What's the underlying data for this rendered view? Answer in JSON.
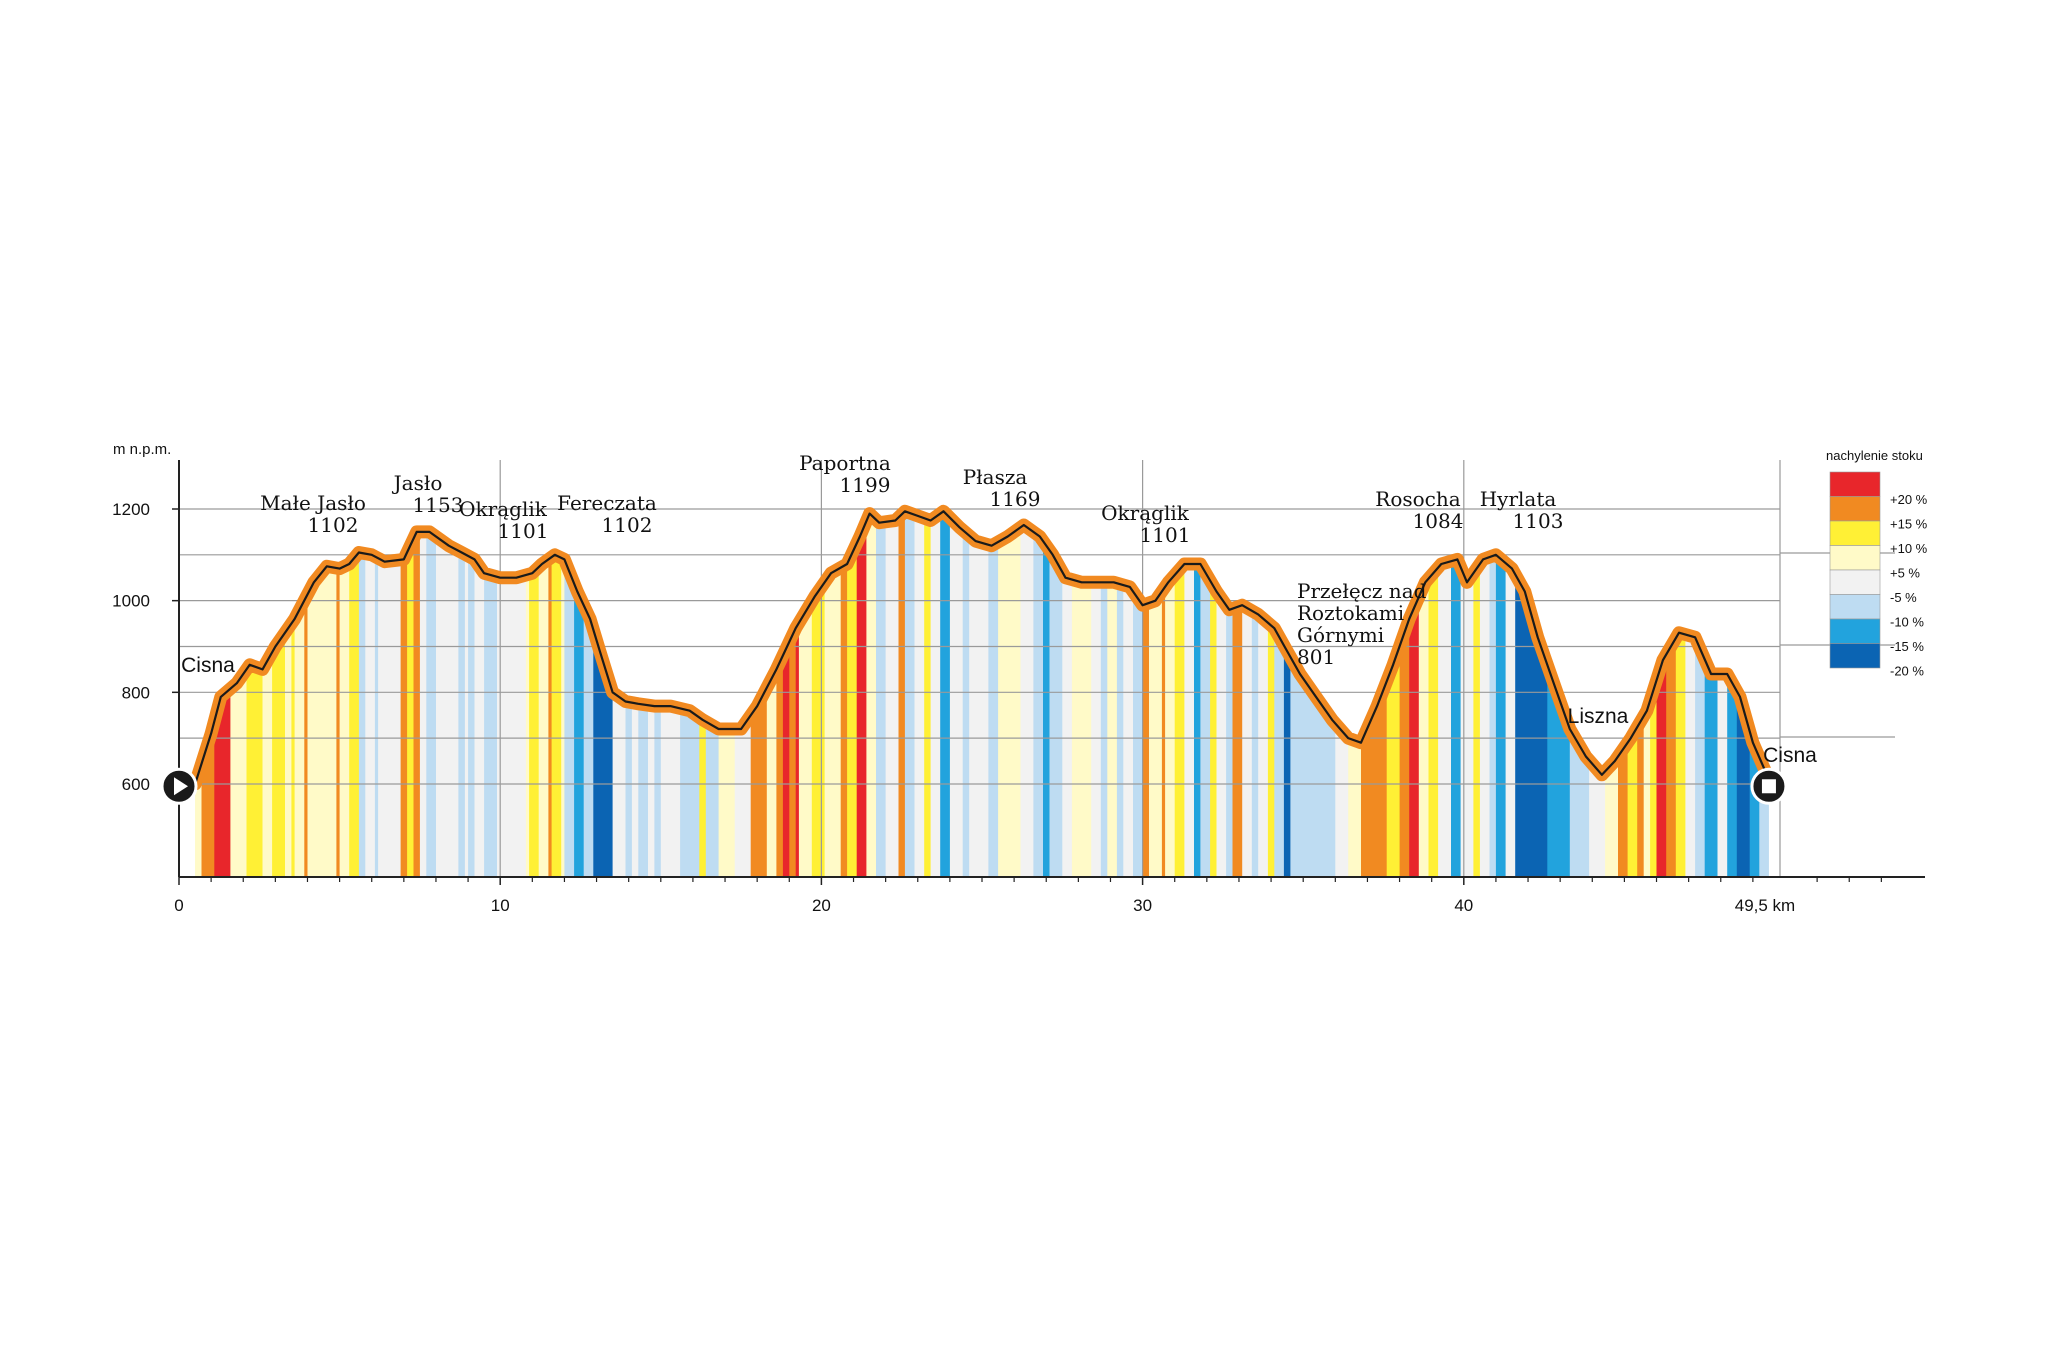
{
  "chart_data": {
    "type": "area",
    "ylabel": "m n.p.m.",
    "x_unit_label": "49,5 km",
    "xlim": [
      0,
      49.5
    ],
    "ylim": [
      450,
      1250
    ],
    "x_ticks": [
      {
        "value": 0,
        "label": "0"
      },
      {
        "value": 10,
        "label": "10"
      },
      {
        "value": 20,
        "label": "20"
      },
      {
        "value": 30,
        "label": "30"
      },
      {
        "value": 40,
        "label": "40"
      }
    ],
    "y_ticks": [
      {
        "value": 600,
        "label": "600"
      },
      {
        "value": 800,
        "label": "800"
      },
      {
        "value": 1000,
        "label": "1000"
      },
      {
        "value": 1200,
        "label": "1200"
      }
    ],
    "grid": true,
    "legend": {
      "title": "nachylenie stoku",
      "position": "top-right",
      "entries": [
        {
          "label": "+20 %",
          "color": "#e8262b"
        },
        {
          "label": "+15 %",
          "color": "#f18a21"
        },
        {
          "label": "+10 %",
          "color": "#fff035"
        },
        {
          "label": "+5 %",
          "color": "#fffac8"
        },
        {
          "label": "-5 %",
          "color": "#f2f2f2"
        },
        {
          "label": "-10 %",
          "color": "#bedcf2"
        },
        {
          "label": "-15 %",
          "color": "#22a3dd"
        },
        {
          "label": "-20 %",
          "color": "#0b64b3"
        }
      ]
    },
    "profile": [
      [
        0.5,
        600
      ],
      [
        1.0,
        710
      ],
      [
        1.3,
        790
      ],
      [
        1.8,
        820
      ],
      [
        2.2,
        860
      ],
      [
        2.6,
        850
      ],
      [
        3.0,
        900
      ],
      [
        3.6,
        960
      ],
      [
        4.2,
        1040
      ],
      [
        4.6,
        1075
      ],
      [
        5.0,
        1070
      ],
      [
        5.3,
        1080
      ],
      [
        5.6,
        1105
      ],
      [
        6.0,
        1100
      ],
      [
        6.4,
        1085
      ],
      [
        7.0,
        1090
      ],
      [
        7.4,
        1150
      ],
      [
        7.8,
        1150
      ],
      [
        8.4,
        1120
      ],
      [
        8.8,
        1105
      ],
      [
        9.2,
        1090
      ],
      [
        9.5,
        1060
      ],
      [
        10.0,
        1050
      ],
      [
        10.5,
        1050
      ],
      [
        11.0,
        1060
      ],
      [
        11.3,
        1080
      ],
      [
        11.7,
        1100
      ],
      [
        12.0,
        1090
      ],
      [
        12.4,
        1020
      ],
      [
        12.8,
        960
      ],
      [
        13.1,
        890
      ],
      [
        13.5,
        800
      ],
      [
        13.9,
        780
      ],
      [
        14.3,
        775
      ],
      [
        14.8,
        770
      ],
      [
        15.3,
        770
      ],
      [
        15.9,
        760
      ],
      [
        16.3,
        740
      ],
      [
        16.8,
        720
      ],
      [
        17.5,
        720
      ],
      [
        18.0,
        770
      ],
      [
        18.6,
        850
      ],
      [
        19.2,
        940
      ],
      [
        19.8,
        1010
      ],
      [
        20.3,
        1060
      ],
      [
        20.8,
        1080
      ],
      [
        21.2,
        1140
      ],
      [
        21.5,
        1190
      ],
      [
        21.8,
        1170
      ],
      [
        22.3,
        1175
      ],
      [
        22.6,
        1195
      ],
      [
        23.0,
        1185
      ],
      [
        23.4,
        1175
      ],
      [
        23.8,
        1195
      ],
      [
        24.3,
        1160
      ],
      [
        24.8,
        1130
      ],
      [
        25.3,
        1120
      ],
      [
        25.8,
        1140
      ],
      [
        26.3,
        1165
      ],
      [
        26.8,
        1140
      ],
      [
        27.2,
        1100
      ],
      [
        27.6,
        1050
      ],
      [
        28.1,
        1040
      ],
      [
        28.6,
        1040
      ],
      [
        29.1,
        1040
      ],
      [
        29.6,
        1030
      ],
      [
        30.0,
        990
      ],
      [
        30.4,
        1000
      ],
      [
        30.8,
        1040
      ],
      [
        31.3,
        1080
      ],
      [
        31.8,
        1080
      ],
      [
        32.3,
        1020
      ],
      [
        32.7,
        980
      ],
      [
        33.1,
        990
      ],
      [
        33.6,
        970
      ],
      [
        34.1,
        940
      ],
      [
        34.5,
        890
      ],
      [
        34.9,
        840
      ],
      [
        35.4,
        790
      ],
      [
        35.9,
        740
      ],
      [
        36.4,
        700
      ],
      [
        36.8,
        690
      ],
      [
        37.3,
        770
      ],
      [
        37.8,
        860
      ],
      [
        38.3,
        960
      ],
      [
        38.8,
        1040
      ],
      [
        39.3,
        1080
      ],
      [
        39.8,
        1090
      ],
      [
        40.1,
        1040
      ],
      [
        40.6,
        1090
      ],
      [
        41.0,
        1100
      ],
      [
        41.5,
        1070
      ],
      [
        41.9,
        1020
      ],
      [
        42.3,
        920
      ],
      [
        42.8,
        820
      ],
      [
        43.3,
        720
      ],
      [
        43.8,
        660
      ],
      [
        44.3,
        620
      ],
      [
        44.7,
        650
      ],
      [
        45.2,
        700
      ],
      [
        45.7,
        760
      ],
      [
        46.2,
        870
      ],
      [
        46.7,
        930
      ],
      [
        47.2,
        920
      ],
      [
        47.7,
        840
      ],
      [
        48.2,
        840
      ],
      [
        48.6,
        790
      ],
      [
        49.0,
        690
      ],
      [
        49.5,
        610
      ]
    ],
    "slope_stripes": [
      [
        0.0,
        0.7,
        "+5 %"
      ],
      [
        0.7,
        1.1,
        "+15 %"
      ],
      [
        1.1,
        1.6,
        "+20 %"
      ],
      [
        1.6,
        2.1,
        "+5 %"
      ],
      [
        2.1,
        2.6,
        "+10 %"
      ],
      [
        2.6,
        2.9,
        "+5 %"
      ],
      [
        2.9,
        3.3,
        "+10 %"
      ],
      [
        3.3,
        3.5,
        "+5 %"
      ],
      [
        3.5,
        3.6,
        "+10 %"
      ],
      [
        3.6,
        3.9,
        "+5 %"
      ],
      [
        3.9,
        4.0,
        "+15 %"
      ],
      [
        4.0,
        4.9,
        "+5 %"
      ],
      [
        4.9,
        5.0,
        "+15 %"
      ],
      [
        5.0,
        5.3,
        "+5 %"
      ],
      [
        5.3,
        5.6,
        "+10 %"
      ],
      [
        5.6,
        5.8,
        "-10 %"
      ],
      [
        5.8,
        6.1,
        "-5 %"
      ],
      [
        6.1,
        6.2,
        "-10 %"
      ],
      [
        6.2,
        6.9,
        "-5 %"
      ],
      [
        6.9,
        7.1,
        "+15 %"
      ],
      [
        7.1,
        7.3,
        "+10 %"
      ],
      [
        7.3,
        7.5,
        "+15 %"
      ],
      [
        7.5,
        7.7,
        "-5 %"
      ],
      [
        7.7,
        8.0,
        "-10 %"
      ],
      [
        8.0,
        8.7,
        "-5 %"
      ],
      [
        8.7,
        8.9,
        "-10 %"
      ],
      [
        8.9,
        9.0,
        "-5 %"
      ],
      [
        9.0,
        9.2,
        "-10 %"
      ],
      [
        9.2,
        9.5,
        "-5 %"
      ],
      [
        9.5,
        9.9,
        "-10 %"
      ],
      [
        9.9,
        10.8,
        "-5 %"
      ],
      [
        10.8,
        10.9,
        "+5 %"
      ],
      [
        10.9,
        11.2,
        "+10 %"
      ],
      [
        11.2,
        11.5,
        "+5 %"
      ],
      [
        11.5,
        11.6,
        "+15 %"
      ],
      [
        11.6,
        11.9,
        "+10 %"
      ],
      [
        11.9,
        12.0,
        "+5 %"
      ],
      [
        12.0,
        12.3,
        "-10 %"
      ],
      [
        12.3,
        12.6,
        "-15 %"
      ],
      [
        12.6,
        12.9,
        "-10 %"
      ],
      [
        12.9,
        13.5,
        "-20 %"
      ],
      [
        13.5,
        13.9,
        "-5 %"
      ],
      [
        13.9,
        14.1,
        "-10 %"
      ],
      [
        14.1,
        14.3,
        "-5 %"
      ],
      [
        14.3,
        14.6,
        "-10 %"
      ],
      [
        14.6,
        14.8,
        "-5 %"
      ],
      [
        14.8,
        15.0,
        "-10 %"
      ],
      [
        15.0,
        15.6,
        "-5 %"
      ],
      [
        15.6,
        16.2,
        "-10 %"
      ],
      [
        16.2,
        16.4,
        "+10 %"
      ],
      [
        16.4,
        16.8,
        "-10 %"
      ],
      [
        16.8,
        17.3,
        "+5 %"
      ],
      [
        17.3,
        17.8,
        "-5 %"
      ],
      [
        17.8,
        18.3,
        "+15 %"
      ],
      [
        18.3,
        18.6,
        "+5 %"
      ],
      [
        18.6,
        18.8,
        "+15 %"
      ],
      [
        18.8,
        19.0,
        "+20 %"
      ],
      [
        19.0,
        19.2,
        "+15 %"
      ],
      [
        19.2,
        19.3,
        "+20 %"
      ],
      [
        19.3,
        19.7,
        "+5 %"
      ],
      [
        19.7,
        20.1,
        "+10 %"
      ],
      [
        20.1,
        20.6,
        "+5 %"
      ],
      [
        20.6,
        20.8,
        "+15 %"
      ],
      [
        20.8,
        21.1,
        "+10 %"
      ],
      [
        21.1,
        21.4,
        "+20 %"
      ],
      [
        21.4,
        21.7,
        "+5 %"
      ],
      [
        21.7,
        22.0,
        "-10 %"
      ],
      [
        22.0,
        22.4,
        "-5 %"
      ],
      [
        22.4,
        22.6,
        "+15 %"
      ],
      [
        22.6,
        22.9,
        "-10 %"
      ],
      [
        22.9,
        23.2,
        "-5 %"
      ],
      [
        23.2,
        23.4,
        "+10 %"
      ],
      [
        23.4,
        23.7,
        "-5 %"
      ],
      [
        23.7,
        24.0,
        "-15 %"
      ],
      [
        24.0,
        24.4,
        "-5 %"
      ],
      [
        24.4,
        24.6,
        "-10 %"
      ],
      [
        24.6,
        25.2,
        "-5 %"
      ],
      [
        25.2,
        25.5,
        "-10 %"
      ],
      [
        25.5,
        26.2,
        "+5 %"
      ],
      [
        26.2,
        26.6,
        "-5 %"
      ],
      [
        26.6,
        26.9,
        "-10 %"
      ],
      [
        26.9,
        27.1,
        "-15 %"
      ],
      [
        27.1,
        27.5,
        "-10 %"
      ],
      [
        27.5,
        27.8,
        "-5 %"
      ],
      [
        27.8,
        28.4,
        "+5 %"
      ],
      [
        28.4,
        28.7,
        "-5 %"
      ],
      [
        28.7,
        28.9,
        "-10 %"
      ],
      [
        28.9,
        29.2,
        "+5 %"
      ],
      [
        29.2,
        29.4,
        "-10 %"
      ],
      [
        29.4,
        29.7,
        "-5 %"
      ],
      [
        29.7,
        30.0,
        "-10 %"
      ],
      [
        30.0,
        30.2,
        "+15 %"
      ],
      [
        30.2,
        30.6,
        "+5 %"
      ],
      [
        30.6,
        30.7,
        "+15 %"
      ],
      [
        30.7,
        31.0,
        "+5 %"
      ],
      [
        31.0,
        31.3,
        "+10 %"
      ],
      [
        31.3,
        31.6,
        "-5 %"
      ],
      [
        31.6,
        31.8,
        "-15 %"
      ],
      [
        31.8,
        32.1,
        "-10 %"
      ],
      [
        32.1,
        32.3,
        "+10 %"
      ],
      [
        32.3,
        32.6,
        "-5 %"
      ],
      [
        32.6,
        32.8,
        "-10 %"
      ],
      [
        32.8,
        33.1,
        "+15 %"
      ],
      [
        33.1,
        33.4,
        "-5 %"
      ],
      [
        33.4,
        33.6,
        "-10 %"
      ],
      [
        33.6,
        33.9,
        "-5 %"
      ],
      [
        33.9,
        34.1,
        "+10 %"
      ],
      [
        34.1,
        34.4,
        "-10 %"
      ],
      [
        34.4,
        34.6,
        "-20 %"
      ],
      [
        34.6,
        36.0,
        "-10 %"
      ],
      [
        36.0,
        36.4,
        "-5 %"
      ],
      [
        36.4,
        36.8,
        "+5 %"
      ],
      [
        36.8,
        37.6,
        "+15 %"
      ],
      [
        37.6,
        38.0,
        "+10 %"
      ],
      [
        38.0,
        38.3,
        "+15 %"
      ],
      [
        38.3,
        38.6,
        "+20 %"
      ],
      [
        38.6,
        38.9,
        "+5 %"
      ],
      [
        38.9,
        39.2,
        "+10 %"
      ],
      [
        39.2,
        39.6,
        "-5 %"
      ],
      [
        39.6,
        39.9,
        "-15 %"
      ],
      [
        39.9,
        40.3,
        "-5 %"
      ],
      [
        40.3,
        40.5,
        "+10 %"
      ],
      [
        40.5,
        40.8,
        "-5 %"
      ],
      [
        40.8,
        41.0,
        "-10 %"
      ],
      [
        41.0,
        41.3,
        "-15 %"
      ],
      [
        41.3,
        41.6,
        "-5 %"
      ],
      [
        41.6,
        42.6,
        "-20 %"
      ],
      [
        42.6,
        43.3,
        "-15 %"
      ],
      [
        43.3,
        43.9,
        "-10 %"
      ],
      [
        43.9,
        44.4,
        "-5 %"
      ],
      [
        44.4,
        44.8,
        "+5 %"
      ],
      [
        44.8,
        45.1,
        "+15 %"
      ],
      [
        45.1,
        45.4,
        "+10 %"
      ],
      [
        45.4,
        45.6,
        "+15 %"
      ],
      [
        45.6,
        45.8,
        "+5 %"
      ],
      [
        45.8,
        46.0,
        "+10 %"
      ],
      [
        46.0,
        46.3,
        "+20 %"
      ],
      [
        46.3,
        46.6,
        "+15 %"
      ],
      [
        46.6,
        46.9,
        "+10 %"
      ],
      [
        46.9,
        47.2,
        "-5 %"
      ],
      [
        47.2,
        47.5,
        "-10 %"
      ],
      [
        47.5,
        47.9,
        "-15 %"
      ],
      [
        47.9,
        48.2,
        "-5 %"
      ],
      [
        48.2,
        48.5,
        "-15 %"
      ],
      [
        48.5,
        48.9,
        "-20 %"
      ],
      [
        48.9,
        49.2,
        "-15 %"
      ],
      [
        49.2,
        49.5,
        "-10 %"
      ]
    ],
    "annotations": [
      {
        "name": "Cisna",
        "label_lines": [
          "Cisna"
        ],
        "x": 0.9,
        "style": "town"
      },
      {
        "name": "Male Jaslo",
        "label_lines": [
          "Małe Jasło",
          "1102"
        ],
        "x": 4.5,
        "style": "peak"
      },
      {
        "name": "Jaslo",
        "label_lines": [
          "Jasło",
          "1153"
        ],
        "x": 7.3,
        "style": "peak"
      },
      {
        "name": "Okraglik 1",
        "label_lines": [
          "Okrąglik",
          "1101"
        ],
        "x": 10.0,
        "style": "peak"
      },
      {
        "name": "Fereczata",
        "label_lines": [
          "Fereczata",
          "1102"
        ],
        "x": 12.4,
        "style": "peak"
      },
      {
        "name": "Paportna",
        "label_lines": [
          "Paportna",
          "1199"
        ],
        "x": 21.0,
        "style": "peak"
      },
      {
        "name": "Plasza",
        "label_lines": [
          "Płasza",
          "1169"
        ],
        "x": 25.3,
        "style": "peak"
      },
      {
        "name": "Okraglik 2",
        "label_lines": [
          "Okrąglik",
          "1101"
        ],
        "x": 30.0,
        "style": "peak"
      },
      {
        "name": "Przelecz",
        "label_lines": [
          "Przełęcz nad",
          "Roztokami",
          "Górnymi",
          "801"
        ],
        "x": 34.7,
        "style": "peak"
      },
      {
        "name": "Rosocha",
        "label_lines": [
          "Rosocha",
          "1084"
        ],
        "x": 38.9,
        "style": "peak"
      },
      {
        "name": "Hyrlata",
        "label_lines": [
          "Hyrlata",
          "1103"
        ],
        "x": 41.1,
        "style": "peak"
      },
      {
        "name": "Liszna",
        "label_lines": [
          "Liszna"
        ],
        "x": 44.2,
        "style": "town"
      },
      {
        "name": "Cisna end",
        "label_lines": [
          "Cisna"
        ],
        "x": 50.0,
        "style": "town"
      }
    ],
    "markers": [
      {
        "name": "start",
        "x": 0,
        "y": 595,
        "symbol": "play"
      },
      {
        "name": "end",
        "x": 49.5,
        "y": 595,
        "symbol": "stop"
      }
    ]
  }
}
